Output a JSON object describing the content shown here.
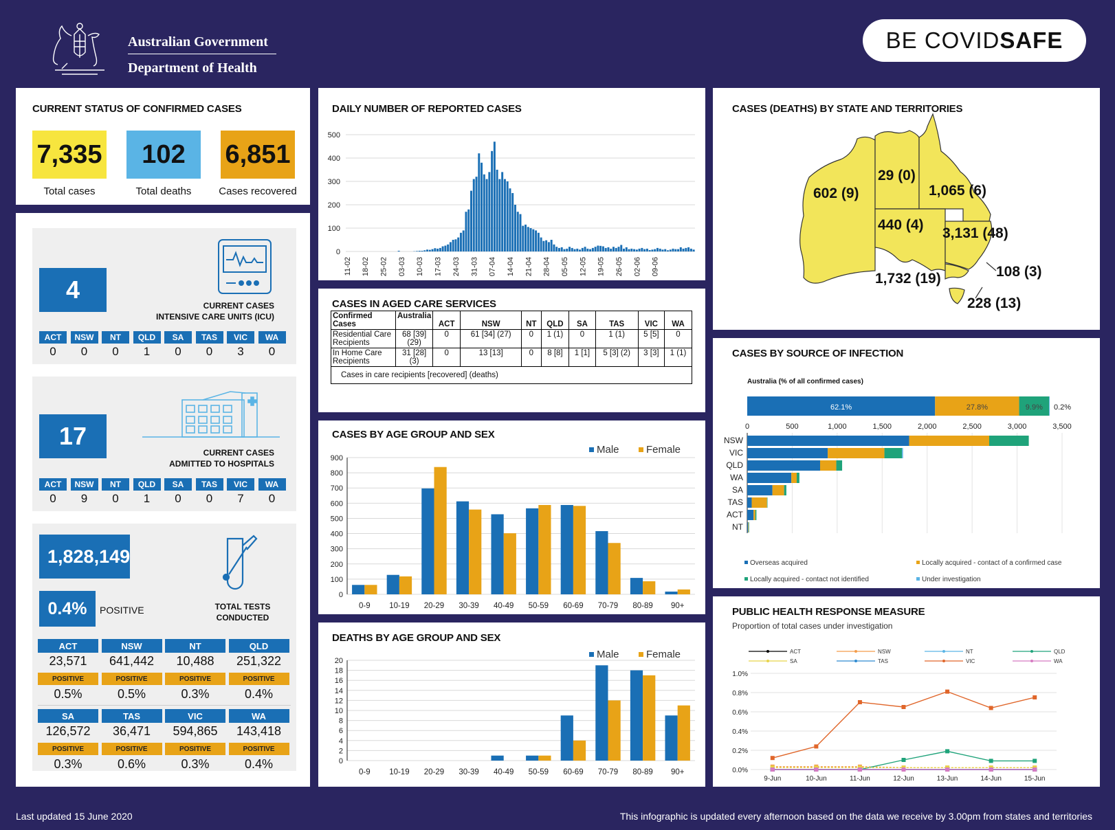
{
  "header": {
    "gov_line1": "Australian Government",
    "gov_line2": "Department of Health",
    "badge_prefix": "BE COVID",
    "badge_bold": "SAFE"
  },
  "status": {
    "title": "CURRENT STATUS OF CONFIRMED CASES",
    "total_cases": "7,335",
    "total_cases_label": "Total cases",
    "total_deaths": "102",
    "total_deaths_label": "Total deaths",
    "recovered": "6,851",
    "recovered_label": "Cases recovered",
    "colors": {
      "cases": "#f7e53e",
      "deaths": "#5ab4e5",
      "recovered": "#e8a317"
    }
  },
  "icu": {
    "value": "4",
    "label1": "CURRENT CASES",
    "label2": "INTENSIVE CARE UNITS (ICU)",
    "states": [
      "ACT",
      "NSW",
      "NT",
      "QLD",
      "SA",
      "TAS",
      "VIC",
      "WA"
    ],
    "values": [
      "0",
      "0",
      "0",
      "1",
      "0",
      "0",
      "3",
      "0"
    ]
  },
  "hospital": {
    "value": "17",
    "label1": "CURRENT CASES",
    "label2": "ADMITTED TO HOSPITALS",
    "states": [
      "ACT",
      "NSW",
      "NT",
      "QLD",
      "SA",
      "TAS",
      "VIC",
      "WA"
    ],
    "values": [
      "0",
      "9",
      "0",
      "1",
      "0",
      "0",
      "7",
      "0"
    ]
  },
  "tests": {
    "total": "1,828,149",
    "positive_pct": "0.4%",
    "positive_label": "POSITIVE",
    "label1": "TOTAL TESTS",
    "label2": "CONDUCTED",
    "positive_tag": "POSITIVE",
    "rows": [
      [
        {
          "state": "ACT",
          "tests": "23,571",
          "pct": "0.5%"
        },
        {
          "state": "NSW",
          "tests": "641,442",
          "pct": "0.5%"
        },
        {
          "state": "NT",
          "tests": "10,488",
          "pct": "0.3%"
        },
        {
          "state": "QLD",
          "tests": "251,322",
          "pct": "0.4%"
        }
      ],
      [
        {
          "state": "SA",
          "tests": "126,572",
          "pct": "0.3%"
        },
        {
          "state": "TAS",
          "tests": "36,471",
          "pct": "0.6%"
        },
        {
          "state": "VIC",
          "tests": "594,865",
          "pct": "0.3%"
        },
        {
          "state": "WA",
          "tests": "143,418",
          "pct": "0.4%"
        }
      ]
    ]
  },
  "aged_care": {
    "title": "CASES IN AGED CARE SERVICES",
    "headers": [
      "Confirmed Cases",
      "Australia",
      "ACT",
      "NSW",
      "NT",
      "QLD",
      "SA",
      "TAS",
      "VIC",
      "WA"
    ],
    "rows": [
      [
        "Residential Care Recipients",
        "68 [39] (29)",
        "0",
        "61 [34] (27)",
        "0",
        "1 (1)",
        "0",
        "1 (1)",
        "5 [5]",
        "0"
      ],
      [
        "In Home Care Recipients",
        "31 [28] (3)",
        "0",
        "13 [13]",
        "0",
        "8 [8]",
        "1 [1]",
        "5 [3] (2)",
        "3 [3]",
        "1 (1)"
      ]
    ],
    "note": "Cases in care recipients [recovered] (deaths)"
  },
  "map": {
    "title": "CASES (DEATHS) BY STATE AND TERRITORIES",
    "labels": {
      "WA": "602 (9)",
      "NT": "29 (0)",
      "QLD": "1,065 (6)",
      "SA": "440 (4)",
      "NSW": "3,131 (48)",
      "ACT": "108 (3)",
      "VIC": "1,732 (19)",
      "TAS": "228 (13)"
    },
    "fill": "#f2e55a"
  },
  "source": {
    "title": "CASES BY SOURCE OF INFECTION",
    "aus_label": "Australia (% of all confirmed cases)",
    "legend": [
      "Overseas acquired",
      "Locally acquired - contact of a confirmed case",
      "Locally acquired - contact not identified",
      "Under investigation"
    ],
    "colors": [
      "#1a6fb5",
      "#e8a317",
      "#1fa37a",
      "#5ab4e5"
    ]
  },
  "public_health": {
    "title": "PUBLIC HEALTH RESPONSE MEASURE",
    "subtitle": "Proportion of total cases under investigation"
  },
  "daily": {
    "title": "DAILY NUMBER OF REPORTED CASES"
  },
  "age_cases": {
    "title": "CASES BY AGE GROUP AND SEX"
  },
  "age_deaths": {
    "title": "DEATHS BY AGE GROUP AND SEX"
  },
  "footer": {
    "left": "Last updated 15 June 2020",
    "right": "This infographic is updated every afternoon based on the data we receive by 3.00pm from states and territories"
  },
  "chart_data": [
    {
      "type": "bar",
      "title": "DAILY NUMBER OF REPORTED CASES",
      "ylim": [
        0,
        500
      ],
      "yticks": [
        0,
        100,
        200,
        300,
        400,
        500
      ],
      "xtick_labels": [
        "11-02",
        "18-02",
        "25-02",
        "03-03",
        "10-03",
        "17-03",
        "24-03",
        "31-03",
        "07-04",
        "14-04",
        "21-04",
        "28-04",
        "05-05",
        "12-05",
        "19-05",
        "26-05",
        "02-06",
        "09-06"
      ],
      "start_date": "2020-02-11",
      "values": [
        0,
        0,
        0,
        0,
        0,
        0,
        0,
        0,
        0,
        0,
        0,
        0,
        0,
        0,
        0,
        0,
        0,
        0,
        0,
        0,
        3,
        0,
        0,
        0,
        0,
        0,
        1,
        2,
        3,
        3,
        5,
        8,
        7,
        10,
        14,
        12,
        15,
        22,
        25,
        30,
        40,
        50,
        52,
        60,
        80,
        90,
        170,
        180,
        260,
        310,
        320,
        420,
        380,
        330,
        310,
        340,
        430,
        470,
        350,
        310,
        340,
        310,
        300,
        270,
        250,
        200,
        170,
        160,
        110,
        115,
        105,
        100,
        95,
        90,
        80,
        60,
        45,
        48,
        40,
        50,
        30,
        20,
        15,
        18,
        10,
        12,
        20,
        15,
        10,
        12,
        8,
        15,
        20,
        12,
        10,
        15,
        20,
        25,
        24,
        22,
        15,
        18,
        12,
        20,
        15,
        20,
        28,
        12,
        18,
        10,
        12,
        10,
        8,
        12,
        15,
        10,
        12,
        6,
        8,
        10,
        15,
        12,
        8,
        10,
        5,
        8,
        12,
        10,
        10,
        18,
        12,
        15,
        18,
        12,
        8
      ]
    },
    {
      "type": "bar",
      "title": "CASES BY AGE GROUP AND SEX",
      "categories": [
        "0-9",
        "10-19",
        "20-29",
        "30-39",
        "40-49",
        "50-59",
        "60-69",
        "70-79",
        "80-89",
        "90+"
      ],
      "ylim": [
        0,
        900
      ],
      "yticks": [
        0,
        100,
        200,
        300,
        400,
        500,
        600,
        700,
        800,
        900
      ],
      "series": [
        {
          "name": "Male",
          "color": "#1a6fb5",
          "values": [
            62,
            128,
            697,
            612,
            527,
            566,
            588,
            416,
            108,
            18
          ]
        },
        {
          "name": "Female",
          "color": "#e8a317",
          "values": [
            62,
            118,
            838,
            558,
            402,
            588,
            582,
            338,
            86,
            32
          ]
        }
      ]
    },
    {
      "type": "bar",
      "title": "DEATHS BY AGE GROUP AND SEX",
      "categories": [
        "0-9",
        "10-19",
        "20-29",
        "30-39",
        "40-49",
        "50-59",
        "60-69",
        "70-79",
        "80-89",
        "90+"
      ],
      "ylim": [
        0,
        20
      ],
      "yticks": [
        0,
        2,
        4,
        6,
        8,
        10,
        12,
        14,
        16,
        18,
        20
      ],
      "series": [
        {
          "name": "Male",
          "color": "#1a6fb5",
          "values": [
            0,
            0,
            0,
            0,
            1,
            1,
            9,
            19,
            18,
            9
          ]
        },
        {
          "name": "Female",
          "color": "#e8a317",
          "values": [
            0,
            0,
            0,
            0,
            0,
            1,
            4,
            12,
            17,
            11
          ]
        }
      ]
    },
    {
      "type": "bar",
      "title": "CASES BY SOURCE OF INFECTION",
      "stacked": true,
      "orientation": "horizontal",
      "australia_pct": [
        62.1,
        27.8,
        9.9,
        0.2
      ],
      "australia_labels": [
        "62.1%",
        "27.8%",
        "9.9%",
        "0.2%"
      ],
      "xlim": [
        0,
        3500
      ],
      "xticks": [
        "0",
        "500",
        "1,000",
        "1,500",
        "2,000",
        "2,500",
        "3,000",
        "3,500"
      ],
      "categories": [
        "NSW",
        "VIC",
        "QLD",
        "WA",
        "SA",
        "TAS",
        "ACT",
        "NT"
      ],
      "series": [
        {
          "name": "Overseas acquired",
          "values": [
            1800,
            895,
            810,
            490,
            280,
            50,
            70,
            10
          ]
        },
        {
          "name": "Locally acquired - contact of a confirmed case",
          "values": [
            890,
            630,
            180,
            60,
            130,
            170,
            20,
            5
          ]
        },
        {
          "name": "Locally acquired - contact not identified",
          "values": [
            440,
            195,
            65,
            30,
            25,
            5,
            12,
            5
          ]
        },
        {
          "name": "Under investigation",
          "values": [
            0,
            12,
            0,
            0,
            0,
            0,
            0,
            0
          ]
        }
      ]
    },
    {
      "type": "line",
      "title": "PUBLIC HEALTH RESPONSE MEASURE",
      "subtitle": "Proportion of total cases under investigation",
      "categories": [
        "9-Jun",
        "10-Jun",
        "11-Jun",
        "12-Jun",
        "13-Jun",
        "14-Jun",
        "15-Jun"
      ],
      "ylim": [
        0,
        1.0
      ],
      "ytick_labels": [
        "0.0%",
        "0.2%",
        "0.4%",
        "0.6%",
        "0.8%",
        "1.0%"
      ],
      "series": [
        {
          "name": "ACT",
          "color": "#000000",
          "values": [
            0,
            0,
            0,
            0,
            0,
            0,
            0
          ]
        },
        {
          "name": "NSW",
          "color": "#f39c4a",
          "values": [
            0.03,
            0.03,
            0.03,
            0.02,
            0.02,
            0.02,
            0.02
          ]
        },
        {
          "name": "NT",
          "color": "#5ab4e5",
          "values": [
            0,
            0,
            0,
            0,
            0,
            0,
            0
          ]
        },
        {
          "name": "QLD",
          "color": "#1fa37a",
          "values": [
            0,
            0,
            0,
            0.1,
            0.19,
            0.09,
            0.09
          ]
        },
        {
          "name": "SA",
          "color": "#e8d34a",
          "values": [
            0.02,
            0.02,
            0.02,
            0.02,
            0.02,
            0.02,
            0.02
          ]
        },
        {
          "name": "TAS",
          "color": "#2e8ad0",
          "values": [
            0,
            0,
            0,
            0,
            0,
            0,
            0
          ]
        },
        {
          "name": "VIC",
          "color": "#e0662a",
          "values": [
            0.12,
            0.24,
            0.7,
            0.65,
            0.81,
            0.64,
            0.75
          ]
        },
        {
          "name": "WA",
          "color": "#d57ac2",
          "values": [
            0,
            0,
            0,
            0,
            0,
            0,
            0
          ]
        }
      ]
    }
  ]
}
